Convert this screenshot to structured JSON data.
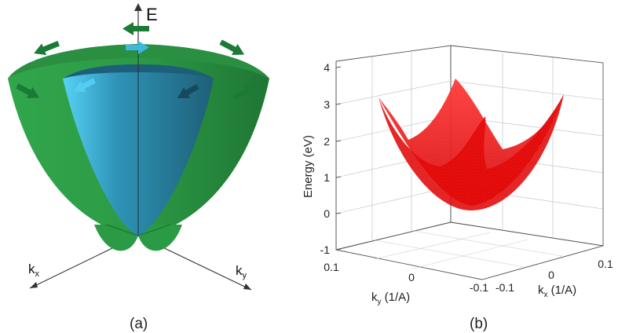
{
  "panel_a": {
    "axis_e": "E",
    "axis_kx_base": "k",
    "axis_kx_sub": "x",
    "axis_ky_base": "k",
    "axis_ky_sub": "y",
    "caption": "(a)",
    "colors": {
      "outer_cone": "#2e9e47",
      "outer_rim": "#237d37",
      "inner_cone": "#2a88a6",
      "inner_light": "#4ec9ef",
      "arrow_green": "#1a7a36",
      "arrow_blue": "#3fb7e0"
    }
  },
  "panel_b": {
    "caption": "(b)",
    "zlabel": "Energy (eV)",
    "z_ticks": [
      "4",
      "3",
      "2",
      "1",
      "0",
      "-1"
    ],
    "y_axis_label_base": "k",
    "y_axis_label_sub": "y",
    "y_axis_label_unit": " (1/A)",
    "y_ticks": [
      "0.1",
      "0",
      "-0.1"
    ],
    "x_axis_label_base": "k",
    "x_axis_label_sub": "x",
    "x_axis_label_unit": " (1/A)",
    "x_ticks": [
      "-0.1",
      "0",
      "0.1"
    ],
    "surface_color": "#ff1a1a"
  },
  "chart_data": {
    "type": "surface",
    "title": "",
    "xlabel": "kx (1/A)",
    "ylabel": "ky (1/A)",
    "zlabel": "Energy (eV)",
    "xlim": [
      -0.1,
      0.1
    ],
    "ylim": [
      -0.1,
      0.1
    ],
    "zlim": [
      -1,
      4
    ],
    "z_ticks": [
      -1,
      0,
      1,
      2,
      3,
      4
    ],
    "surfaces": [
      {
        "description_of_shape": "lower band, paraboloid",
        "min_energy": 0.0,
        "edge_energy": 3.0
      },
      {
        "description_of_shape": "upper band, paraboloid",
        "min_energy": 0.0,
        "edge_energy": 3.0
      }
    ],
    "grid": true
  }
}
